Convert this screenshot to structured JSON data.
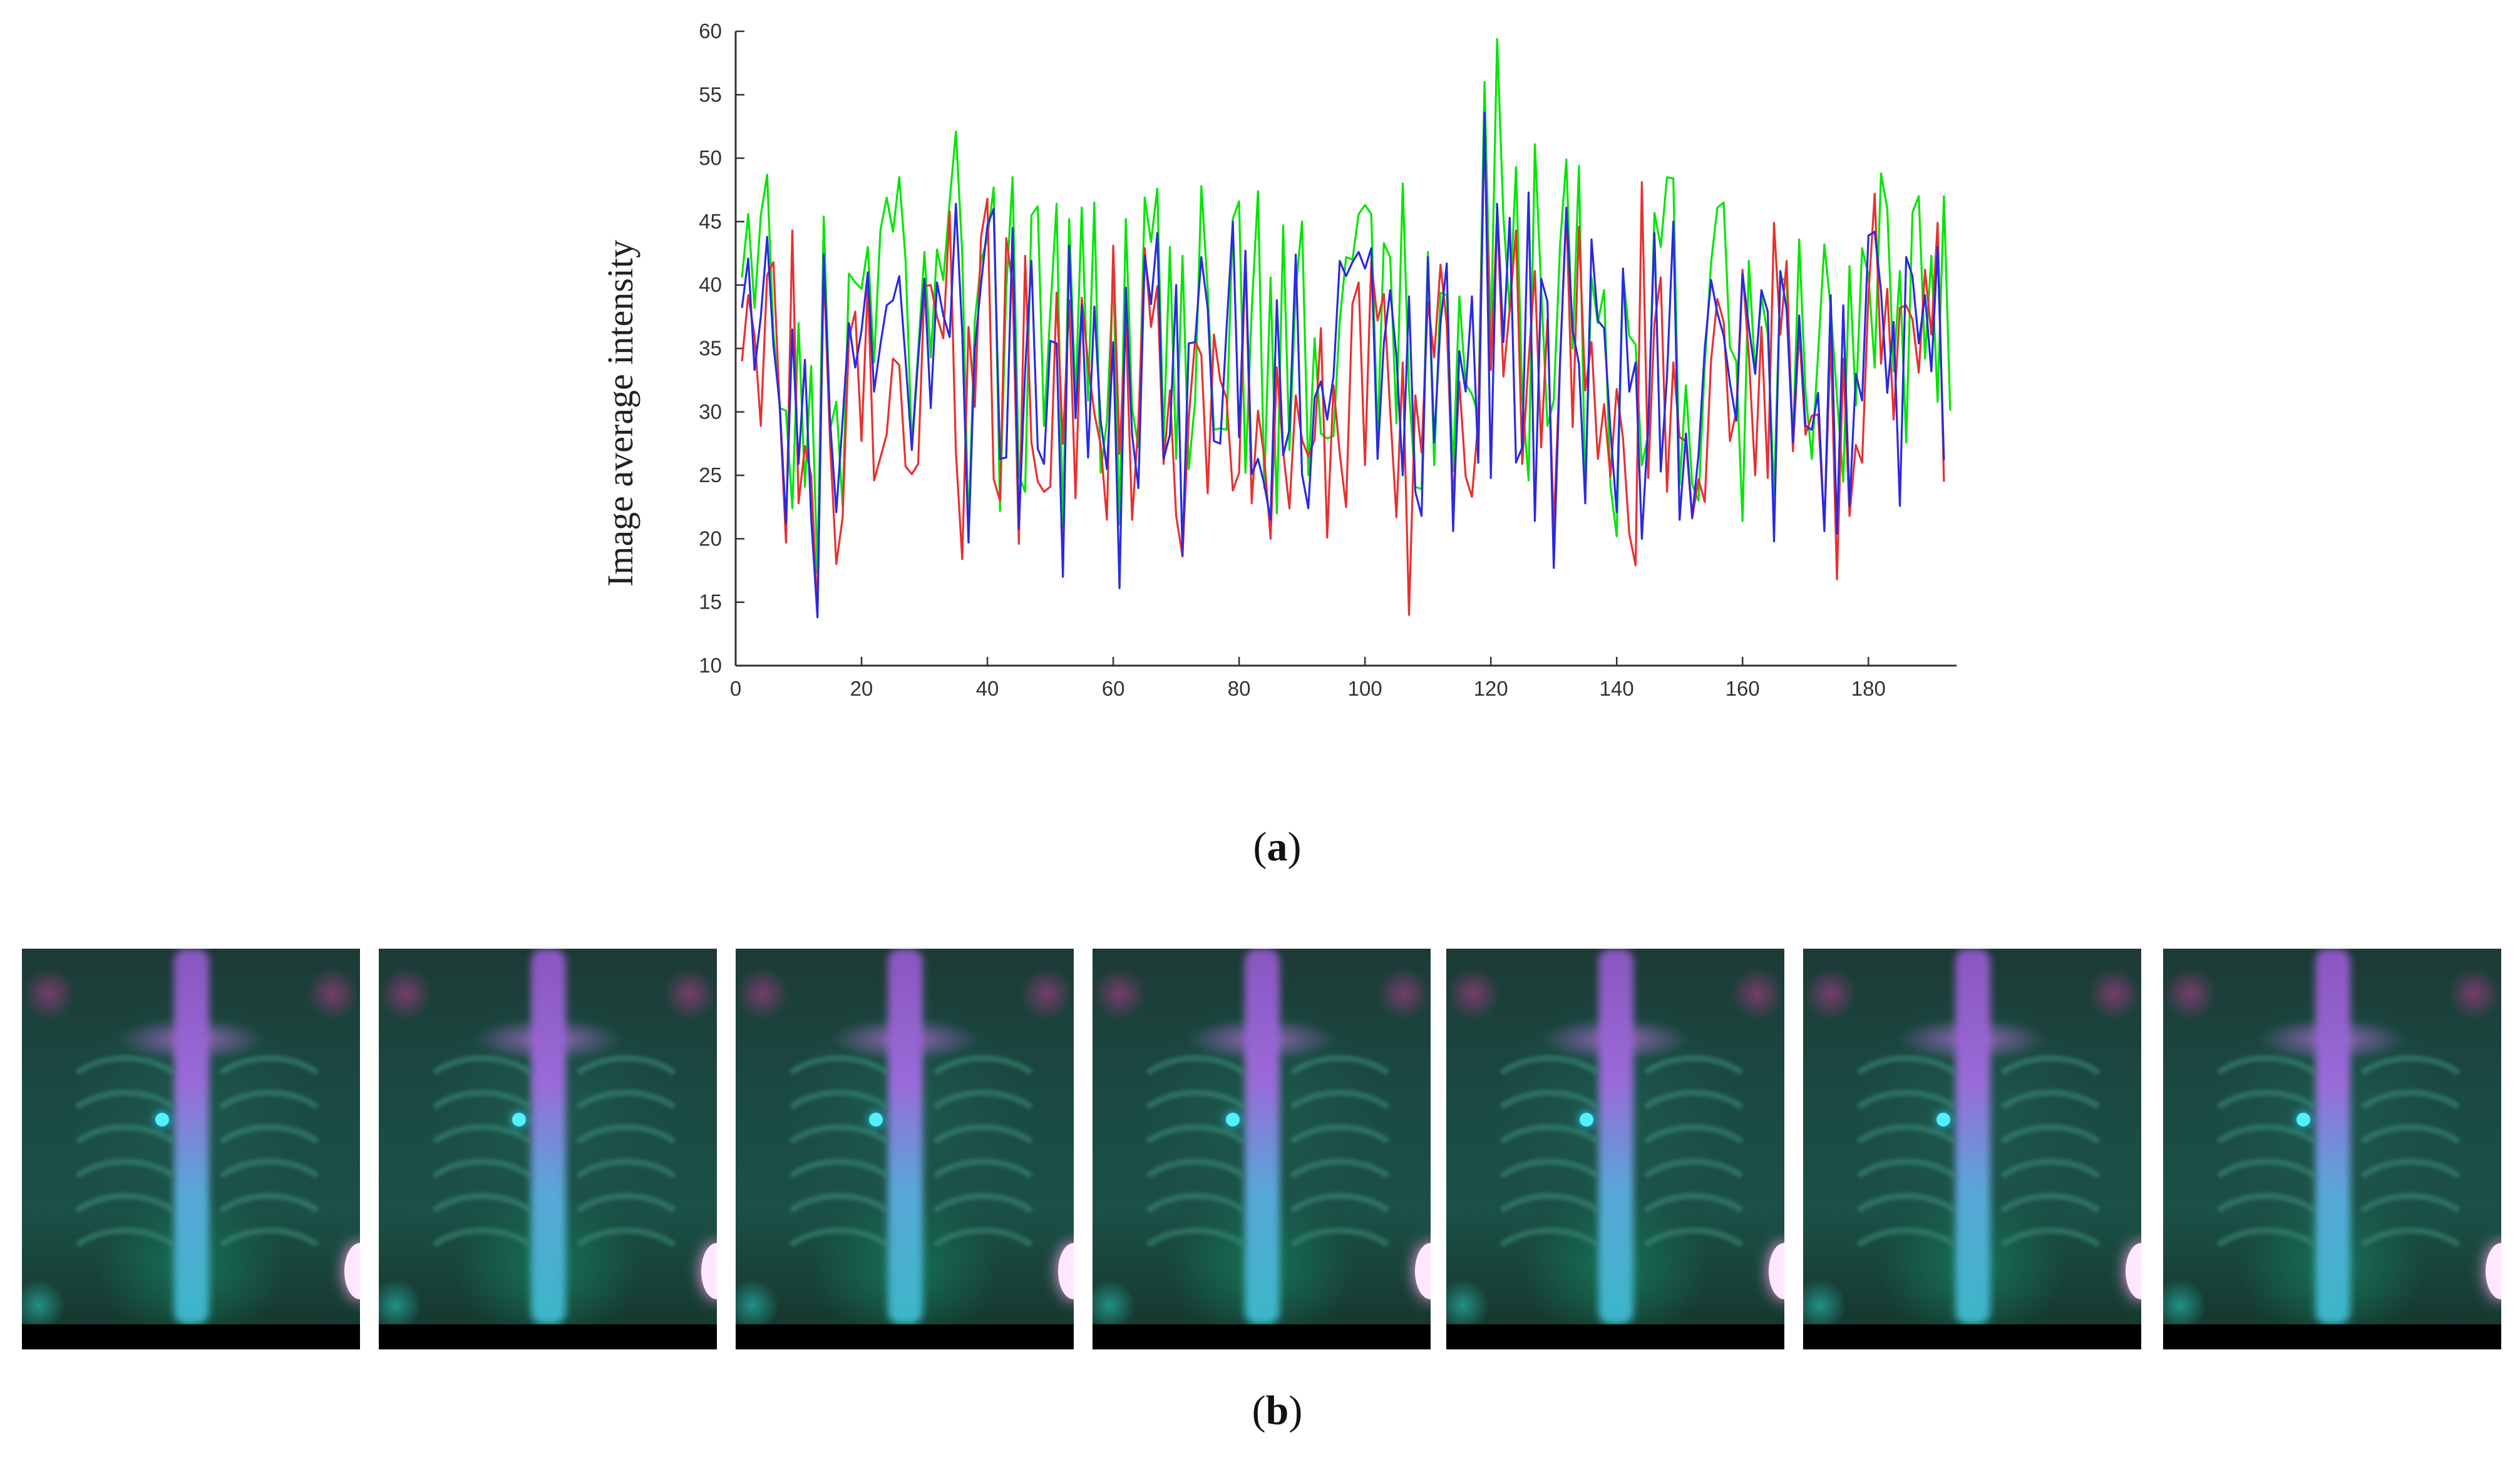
{
  "chart_data": {
    "type": "line",
    "title": "",
    "xlabel": "",
    "ylabel": "Image average intensity",
    "xlim": [
      0,
      194
    ],
    "ylim": [
      10,
      60
    ],
    "xticks": [
      0,
      20,
      40,
      60,
      80,
      100,
      120,
      140,
      160,
      180
    ],
    "yticks": [
      10,
      15,
      20,
      25,
      30,
      35,
      40,
      45,
      50,
      55,
      60
    ],
    "grid": false,
    "series": [
      {
        "name": "green",
        "color": "#00e600",
        "x_step": 1,
        "x_start": 1,
        "values": [
          40.6,
          45.6,
          38.2,
          45.5,
          48.7,
          36.3,
          30.3,
          30.1,
          22.4,
          37.0,
          24.1,
          33.6,
          17.3,
          45.4,
          28.6,
          30.8,
          22.5,
          40.9,
          40.2,
          39.7,
          43.0,
          33.9,
          44.3,
          46.9,
          44.2,
          48.5,
          42.0,
          27.3,
          34.8,
          42.6,
          34.3,
          42.8,
          40.4,
          46.6,
          52.1,
          42.5,
          20.6,
          37.2,
          41.9,
          43.7,
          47.7,
          22.2,
          39.6,
          48.5,
          25.0,
          23.7,
          45.5,
          46.2,
          28.9,
          37.9,
          46.4,
          20.9,
          45.2,
          30.9,
          46.1,
          30.9,
          46.5,
          25.2,
          29.3,
          40.9,
          21.1,
          45.2,
          30.3,
          27.2,
          46.9,
          43.4,
          47.6,
          27.7,
          43.0,
          26.3,
          42.3,
          25.5,
          30.8,
          47.8,
          39.7,
          28.6,
          28.7,
          28.6,
          45.2,
          46.6,
          25.2,
          37.9,
          47.4,
          24.0,
          40.6,
          22.0,
          44.7,
          27.0,
          39.6,
          45.0,
          25.0,
          35.8,
          28.3,
          27.9,
          28.1,
          37.2,
          42.2,
          42.0,
          45.6,
          46.3,
          45.6,
          28.0,
          43.3,
          42.2,
          29.1,
          48.0,
          31.8,
          24.1,
          23.9,
          42.6,
          25.8,
          39.4,
          39.2,
          25.3,
          39.1,
          32.2,
          31.4,
          29.8,
          56.0,
          35.6,
          59.4,
          45.4,
          37.9,
          49.3,
          31.2,
          24.6,
          51.1,
          39.8,
          28.9,
          30.9,
          43.2,
          49.9,
          35.0,
          49.4,
          23.7,
          40.6,
          37.0,
          39.6,
          24.2,
          20.2,
          41.0,
          36.0,
          35.3,
          25.8,
          28.2,
          45.7,
          43.0,
          48.5,
          48.4,
          24.2,
          32.1,
          24.3,
          23.0,
          33.7,
          41.8,
          46.1,
          46.5,
          35.1,
          34.0,
          21.4,
          41.9,
          33.0,
          39.1,
          36.1,
          23.4,
          40.6,
          40.3,
          27.4,
          43.6,
          31.6,
          26.3,
          34.6,
          43.2,
          38.2,
          31.2,
          24.5,
          41.5,
          30.5,
          42.9,
          40.8,
          33.5,
          48.8,
          46.0,
          33.2,
          41.1,
          27.6,
          45.7,
          47.0,
          34.2,
          42.3,
          30.8,
          47.0,
          30.1
        ]
      },
      {
        "name": "red",
        "color": "#e83030",
        "x_step": 1,
        "x_start": 1,
        "values": [
          34.0,
          39.2,
          36.0,
          28.9,
          40.8,
          41.8,
          30.3,
          19.7,
          44.3,
          22.8,
          27.3,
          25.0,
          14.1,
          41.5,
          27.5,
          18.0,
          21.7,
          35.8,
          37.9,
          27.7,
          40.1,
          24.6,
          26.4,
          28.2,
          34.2,
          33.7,
          25.7,
          25.1,
          25.9,
          39.9,
          40.0,
          37.5,
          35.8,
          45.8,
          26.8,
          18.4,
          36.7,
          30.4,
          43.8,
          46.8,
          24.7,
          23.0,
          43.7,
          40.0,
          19.6,
          42.3,
          27.6,
          24.5,
          23.7,
          24.1,
          39.4,
          27.5,
          38.8,
          23.2,
          39.0,
          33.8,
          29.9,
          27.4,
          21.5,
          43.1,
          26.7,
          37.1,
          21.5,
          29.2,
          42.9,
          36.7,
          39.9,
          25.9,
          31.7,
          21.8,
          18.6,
          29.5,
          35.6,
          34.5,
          23.6,
          36.1,
          32.5,
          31.1,
          23.8,
          25.2,
          42.4,
          22.8,
          30.1,
          26.4,
          20.0,
          33.5,
          26.9,
          22.4,
          31.3,
          27.8,
          26.5,
          27.8,
          36.6,
          20.1,
          32.1,
          26.7,
          22.5,
          38.5,
          40.2,
          25.8,
          41.8,
          37.2,
          39.3,
          30.1,
          21.7,
          33.9,
          14.0,
          31.3,
          26.8,
          38.7,
          34.3,
          41.6,
          36.9,
          22.8,
          32.4,
          24.9,
          23.3,
          29.3,
          52.4,
          33.3,
          45.7,
          32.8,
          38.1,
          44.3,
          25.9,
          34.0,
          41.1,
          27.2,
          37.3,
          20.8,
          34.1,
          45.9,
          28.8,
          44.6,
          31.7,
          35.5,
          26.3,
          30.6,
          24.9,
          31.8,
          27.9,
          20.4,
          17.9,
          48.1,
          24.8,
          37.0,
          40.6,
          23.7,
          33.9,
          28.0,
          27.7,
          21.6,
          24.7,
          22.9,
          34.1,
          38.9,
          37.1,
          27.7,
          30.0,
          41.2,
          34.4,
          25.0,
          36.7,
          24.8,
          44.9,
          36.1,
          41.9,
          26.9,
          36.4,
          28.2,
          29.7,
          29.8,
          20.8,
          35.9,
          16.8,
          34.2,
          21.8,
          27.4,
          26.0,
          39.1,
          47.2,
          33.8,
          39.7,
          29.4,
          38.2,
          38.4,
          37.3,
          33.1,
          41.2,
          36.1,
          44.9,
          24.5
        ]
      },
      {
        "name": "blue",
        "color": "#2a2ae0",
        "x_step": 1,
        "x_start": 1,
        "values": [
          38.2,
          42.1,
          33.3,
          37.5,
          43.8,
          35.3,
          30.6,
          21.2,
          36.5,
          25.9,
          34.1,
          21.6,
          13.8,
          42.4,
          29.3,
          22.1,
          29.4,
          37.0,
          33.5,
          36.4,
          41.0,
          31.6,
          35.3,
          38.4,
          38.8,
          40.7,
          34.1,
          27.0,
          34.2,
          40.5,
          30.3,
          40.2,
          37.6,
          35.9,
          46.4,
          36.2,
          19.7,
          35.0,
          40.1,
          44.7,
          46.0,
          26.3,
          26.4,
          44.5,
          20.8,
          33.3,
          41.9,
          27.1,
          25.9,
          35.6,
          35.4,
          17.0,
          43.1,
          29.5,
          38.4,
          26.4,
          38.3,
          29.3,
          25.5,
          35.5,
          16.1,
          39.8,
          28.2,
          24.0,
          42.3,
          38.5,
          44.1,
          26.3,
          28.2,
          40.0,
          18.7,
          35.4,
          35.5,
          42.2,
          38.2,
          27.7,
          27.5,
          36.5,
          45.0,
          28.0,
          42.7,
          25.1,
          26.3,
          24.3,
          21.5,
          38.8,
          26.6,
          28.6,
          42.4,
          25.1,
          22.4,
          31.1,
          32.4,
          29.4,
          32.8,
          41.9,
          40.7,
          41.8,
          42.6,
          41.3,
          42.9,
          26.3,
          35.4,
          39.6,
          34.4,
          25.0,
          39.1,
          23.7,
          21.8,
          42.2,
          27.6,
          37.0,
          41.7,
          20.6,
          34.8,
          31.6,
          39.1,
          26.0,
          53.6,
          24.8,
          46.4,
          35.5,
          45.3,
          26.0,
          27.2,
          47.3,
          21.4,
          40.5,
          38.7,
          17.7,
          33.9,
          46.1,
          36.4,
          33.8,
          22.8,
          43.6,
          37.2,
          36.6,
          28.6,
          22.1,
          41.3,
          31.6,
          33.9,
          20.0,
          28.9,
          44.1,
          25.3,
          32.8,
          45.0,
          21.5,
          28.3,
          21.7,
          26.6,
          35.0,
          40.4,
          37.8,
          36.0,
          32.3,
          29.3,
          40.9,
          36.7,
          33.0,
          39.6,
          37.9,
          19.8,
          41.1,
          38.1,
          27.6,
          37.6,
          28.9,
          28.6,
          31.5,
          20.6,
          39.2,
          20.4,
          38.4,
          22.6,
          33.0,
          30.9,
          43.9,
          44.2,
          39.5,
          31.5,
          37.1,
          22.6,
          42.2,
          40.7,
          35.4,
          39.2,
          33.2,
          43.0,
          26.2
        ]
      }
    ]
  },
  "captions": {
    "a_letter": "a",
    "a_open": "(",
    "a_close": ")",
    "b_letter": "b",
    "b_open": "(",
    "b_close": ")"
  }
}
